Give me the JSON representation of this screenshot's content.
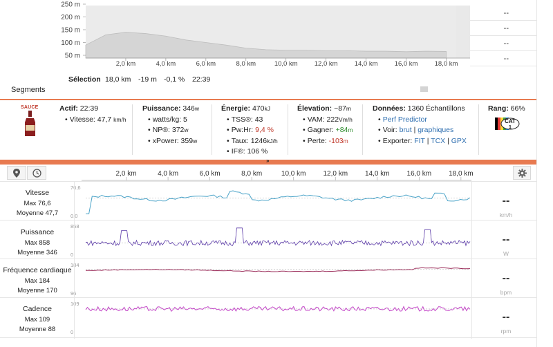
{
  "elevation": {
    "y_ticks": [
      "250 m",
      "200 m",
      "150 m",
      "100 m",
      "50 m"
    ],
    "x_ticks": [
      "2,0 km",
      "4,0 km",
      "6,0 km",
      "8,0 km",
      "10,0 km",
      "12,0 km",
      "14,0 km",
      "16,0 km",
      "18,0 km"
    ],
    "right_values": [
      "--",
      "--",
      "--",
      "--"
    ],
    "colors": {
      "fill": "#d5d5d5",
      "selection_bg": "#ebebeb",
      "overflow": "#e9e9e9"
    }
  },
  "selection": {
    "label": "Sélection",
    "distance": "18,0 km",
    "elevation": "-19 m",
    "grade": "-0,1 %",
    "time": "22:39"
  },
  "segments_title": "Segments",
  "stats": {
    "active": {
      "label": "Actif:",
      "value": "22:39",
      "speed_label": "Vitesse:",
      "speed_value": "47,7",
      "speed_unit": "km/h"
    },
    "power": {
      "label": "Puissance:",
      "value": "346",
      "unit": "w",
      "wkg_label": "watts/kg:",
      "wkg_value": "5",
      "np_label": "NP®:",
      "np_value": "372",
      "np_unit": "w",
      "xpower_label": "xPower:",
      "xpower_value": "359",
      "xpower_unit": "w"
    },
    "energy": {
      "label": "Énergie:",
      "value": "470",
      "unit": "kJ",
      "tss_label": "TSS®:",
      "tss_value": "43",
      "pwhr_label": "Pw:Hr:",
      "pwhr_value": "9,4 %",
      "rate_label": "Taux:",
      "rate_value": "1246",
      "rate_unit": "kJ/h",
      "if_label": "IF®:",
      "if_value": "106 %"
    },
    "elevation": {
      "label": "Élevation:",
      "value": "~87",
      "unit": "m",
      "vam_label": "VAM:",
      "vam_value": "222",
      "vam_unit": "Vm/h",
      "gain_label": "Gagner:",
      "gain_value": "+84",
      "gain_unit": "m",
      "loss_label": "Perte:",
      "loss_value": "-103",
      "loss_unit": "m"
    },
    "data": {
      "label": "Données:",
      "value": "1360 Échantillons",
      "perf_predictor": "Perf Predictor",
      "view_label": "Voir:",
      "view_raw": "brut",
      "view_sep": "|",
      "view_graphs": "graphiques",
      "export_label": "Exporter:",
      "export_fit": "FIT",
      "export_tcx": "TCX",
      "export_gpx": "GPX",
      "export_sep": "|"
    },
    "rank": {
      "label": "Rang:",
      "value": "66%",
      "badge_text": "CAT",
      "badge_num": "1"
    },
    "sauce_logo_text": "SAUCE"
  },
  "collapse_arrow": "»",
  "main_axis": {
    "x_ticks": [
      "2,0 km",
      "4,0 km",
      "6,0 km",
      "8,0 km",
      "10,0 km",
      "12,0 km",
      "14,0 km",
      "16,0 km",
      "18,0 km"
    ]
  },
  "streams": [
    {
      "id": "speed",
      "name": "Vitesse",
      "max_label": "Max 76,6",
      "avg_label": "Moyenne 47,7",
      "ymax": "76,6",
      "ymin": "0,0",
      "value": "--",
      "unit": "km/h",
      "color": "#4aa3c8",
      "max": 76.6,
      "min": 0,
      "avg": 47.7
    },
    {
      "id": "power",
      "name": "Puissance",
      "max_label": "Max 858",
      "avg_label": "Moyenne 346",
      "ymax": "858",
      "ymin": "0",
      "value": "--",
      "unit": "W",
      "color": "#5b3aa8",
      "max": 858,
      "min": 0,
      "avg": 346
    },
    {
      "id": "hr",
      "name": "Fréquence cardiaque",
      "max_label": "Max 184",
      "avg_label": "Moyenne 170",
      "ymax": "184",
      "ymin": "96",
      "value": "--",
      "unit": "bpm",
      "color": "#9b2d5a",
      "max": 184,
      "min": 96,
      "avg": 170
    },
    {
      "id": "cadence",
      "name": "Cadence",
      "max_label": "Max 109",
      "avg_label": "Moyenne 88",
      "ymax": "109",
      "ymin": "0",
      "value": "--",
      "unit": "rpm",
      "color": "#c447c8",
      "max": 109,
      "min": 0,
      "avg": 88
    }
  ],
  "chart_data": {
    "type": "area",
    "x_unit": "km",
    "x": [
      0,
      1,
      2,
      3,
      4,
      5,
      6,
      7,
      8,
      9,
      10,
      11,
      12,
      13,
      14,
      15,
      16,
      17,
      18
    ],
    "elevation_m": [
      90,
      130,
      140,
      135,
      125,
      110,
      100,
      90,
      78,
      72,
      70,
      70,
      68,
      68,
      66,
      66,
      64,
      66,
      65
    ],
    "ylim": [
      50,
      250
    ],
    "xlim": [
      0,
      18.5
    ]
  }
}
